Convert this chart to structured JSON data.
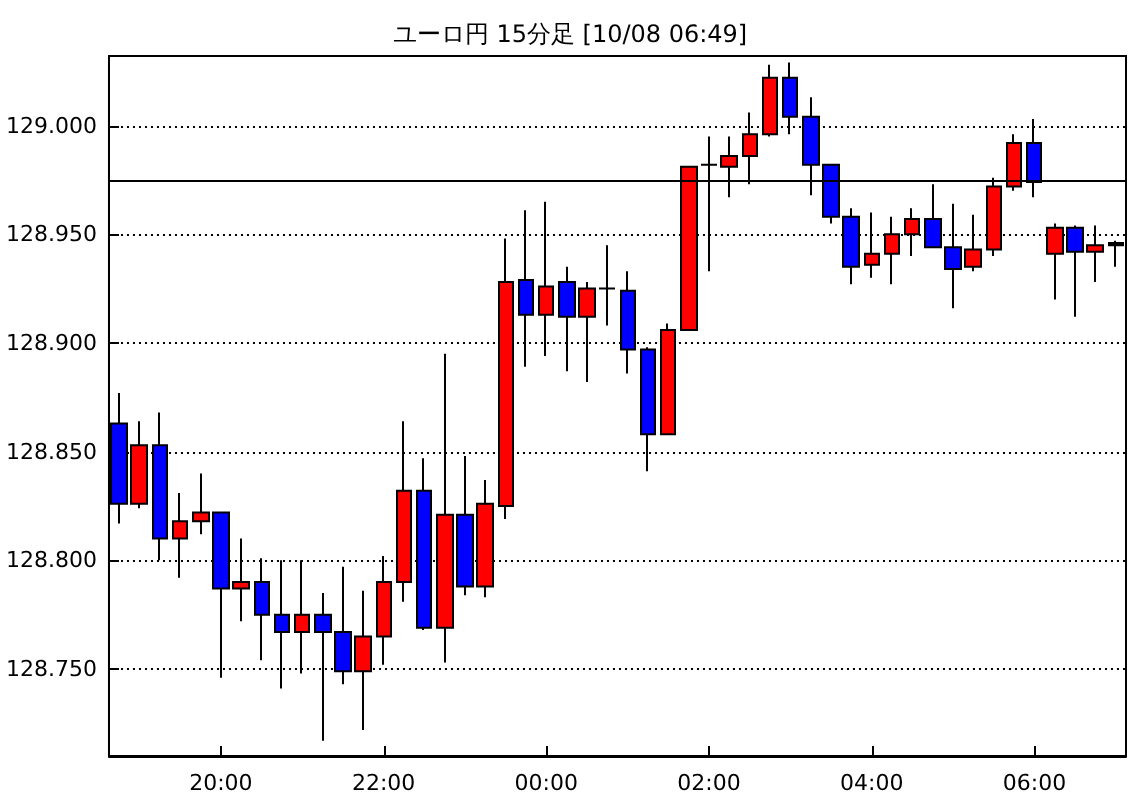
{
  "chart_data": {
    "type": "candlestick",
    "title": "ユーロ円 15分足 [10/08 06:49]",
    "categories": [
      null,
      null,
      null,
      null,
      null,
      "20:00",
      null,
      null,
      null,
      null,
      null,
      null,
      null,
      "22:00",
      null,
      null,
      null,
      null,
      null,
      null,
      null,
      "00:00",
      null,
      null,
      null,
      null,
      null,
      null,
      null,
      "02:00",
      null,
      null,
      null,
      null,
      null,
      null,
      null,
      "04:00",
      null,
      null,
      null,
      null,
      null,
      null,
      null,
      "06:00",
      null,
      null,
      null,
      null
    ],
    "ohlc": [
      [
        128.863,
        128.877,
        128.817,
        128.826
      ],
      [
        128.826,
        128.864,
        128.824,
        128.853
      ],
      [
        128.853,
        128.868,
        128.8,
        128.81
      ],
      [
        128.81,
        128.831,
        128.792,
        128.818
      ],
      [
        128.818,
        128.84,
        128.812,
        128.822
      ],
      [
        128.822,
        128.822,
        128.746,
        128.787
      ],
      [
        128.787,
        128.81,
        128.772,
        128.79
      ],
      [
        128.79,
        128.801,
        128.754,
        128.775
      ],
      [
        128.775,
        128.8,
        128.741,
        128.767
      ],
      [
        128.767,
        128.8,
        128.748,
        128.775
      ],
      [
        128.775,
        128.785,
        128.717,
        128.767
      ],
      [
        128.767,
        128.797,
        128.743,
        128.749
      ],
      [
        128.749,
        128.786,
        128.722,
        128.765
      ],
      [
        128.765,
        128.802,
        128.752,
        128.79
      ],
      [
        128.79,
        128.864,
        128.781,
        128.832
      ],
      [
        128.832,
        128.847,
        128.768,
        128.769
      ],
      [
        128.769,
        128.895,
        128.753,
        128.821
      ],
      [
        128.821,
        128.848,
        128.784,
        128.788
      ],
      [
        128.788,
        128.837,
        128.783,
        128.826
      ],
      [
        128.825,
        128.948,
        128.819,
        128.928
      ],
      [
        128.929,
        128.961,
        128.889,
        128.913
      ],
      [
        128.913,
        128.965,
        128.894,
        128.926
      ],
      [
        128.928,
        128.935,
        128.887,
        128.912
      ],
      [
        128.912,
        128.928,
        128.882,
        128.925
      ],
      [
        128.925,
        128.945,
        128.908,
        128.925
      ],
      [
        128.924,
        128.933,
        128.886,
        128.897
      ],
      [
        128.897,
        128.898,
        128.841,
        128.858
      ],
      [
        128.858,
        128.909,
        128.858,
        128.906
      ],
      [
        128.906,
        128.981,
        128.906,
        128.981
      ],
      [
        128.982,
        128.995,
        128.933,
        128.982
      ],
      [
        128.981,
        128.995,
        128.967,
        128.986
      ],
      [
        128.986,
        129.006,
        128.973,
        128.996
      ],
      [
        128.996,
        129.028,
        128.995,
        129.022
      ],
      [
        129.022,
        129.029,
        128.996,
        129.004
      ],
      [
        129.004,
        129.013,
        128.968,
        128.982
      ],
      [
        128.982,
        128.982,
        128.955,
        128.958
      ],
      [
        128.958,
        128.962,
        128.927,
        128.935
      ],
      [
        128.936,
        128.96,
        128.93,
        128.941
      ],
      [
        128.941,
        128.958,
        128.927,
        128.95
      ],
      [
        128.95,
        128.962,
        128.94,
        128.957
      ],
      [
        128.957,
        128.973,
        128.944,
        128.944
      ],
      [
        128.944,
        128.964,
        128.916,
        128.934
      ],
      [
        128.935,
        128.959,
        128.933,
        128.943
      ],
      [
        128.943,
        128.976,
        128.94,
        128.972
      ],
      [
        128.972,
        128.996,
        128.97,
        128.992
      ],
      [
        128.992,
        129.003,
        128.967,
        128.974
      ],
      [
        128.941,
        128.955,
        128.92,
        128.953
      ],
      [
        128.953,
        128.954,
        128.912,
        128.942
      ],
      [
        128.942,
        128.954,
        128.928,
        128.945
      ],
      [
        128.946,
        128.947,
        128.935,
        128.945
      ]
    ],
    "colors": [
      "#0000ff",
      "#ff0000",
      "#0000ff",
      "#ff0000",
      "#ff0000",
      "#0000ff",
      "#ff0000",
      "#0000ff",
      "#0000ff",
      "#ff0000",
      "#0000ff",
      "#0000ff",
      "#ff0000",
      "#ff0000",
      "#ff0000",
      "#0000ff",
      "#ff0000",
      "#0000ff",
      "#ff0000",
      "#ff0000",
      "#0000ff",
      "#ff0000",
      "#0000ff",
      "#ff0000",
      "#000000",
      "#0000ff",
      "#0000ff",
      "#ff0000",
      "#ff0000",
      "#000000",
      "#ff0000",
      "#ff0000",
      "#ff0000",
      "#0000ff",
      "#0000ff",
      "#0000ff",
      "#0000ff",
      "#ff0000",
      "#ff0000",
      "#ff0000",
      "#0000ff",
      "#0000ff",
      "#ff0000",
      "#ff0000",
      "#ff0000",
      "#0000ff",
      "#ff0000",
      "#0000ff",
      "#ff0000",
      "#000000"
    ],
    "ylim": [
      128.71,
      129.032
    ],
    "yticks": [
      {
        "value": 128.75,
        "label": "128.750"
      },
      {
        "value": 128.8,
        "label": "128.800"
      },
      {
        "value": 128.85,
        "label": "128.850"
      },
      {
        "value": 128.9,
        "label": "128.900"
      },
      {
        "value": 128.95,
        "label": "128.950"
      },
      {
        "value": 129,
        "label": "129.000"
      }
    ],
    "grid": "y",
    "ref_lines": [
      {
        "axis": "y",
        "value": 128.975,
        "label": null,
        "color": "#000000"
      }
    ]
  }
}
